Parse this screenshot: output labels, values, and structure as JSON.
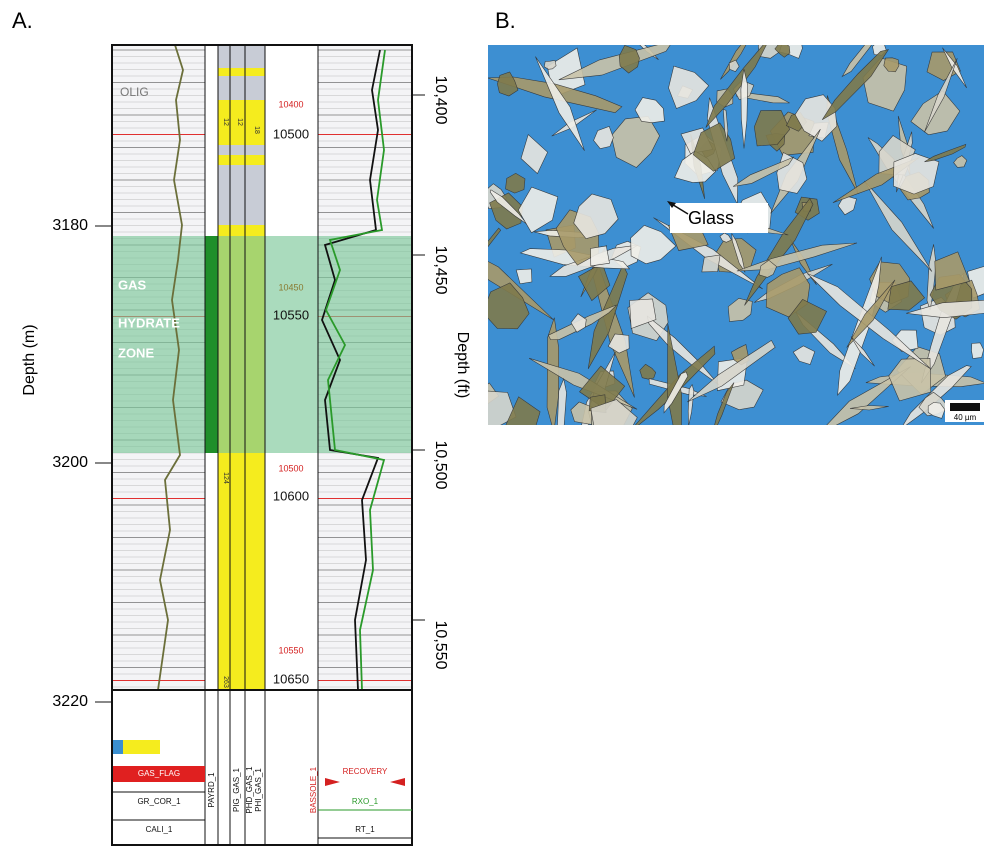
{
  "panel_a": {
    "label": "A.",
    "depth_m_axis": {
      "title": "Depth (m)",
      "ticks": [
        "3180",
        "3200",
        "3220"
      ]
    },
    "depth_ft_axis": {
      "title": "Depth (ft)",
      "ticks": [
        "10,400",
        "10,450",
        "10,500",
        "10,550"
      ]
    },
    "depth_track": {
      "black_labels": [
        "10500",
        "10550",
        "10600",
        "10650"
      ],
      "red_labels": [
        "10400",
        "10450",
        "10500",
        "10550"
      ]
    },
    "zone_labels": [
      "GAS",
      "HYDRATE",
      "ZONE"
    ],
    "formation": "OLIG",
    "track_numbers": [
      "12",
      "12",
      "18",
      "124",
      "263"
    ],
    "footer": {
      "gas_flag": "GAS_FLAG",
      "gr": "GR_COR_1",
      "cali": "CALI_1",
      "pay": "PAYRD_1",
      "tracks": [
        "PIG_GAS_1",
        "PHD_GAS_1",
        "PHI_GAS_1"
      ],
      "recovery": "RECOVERY",
      "rxo": "RXO_1",
      "rt": "RT_1",
      "bas": "BASSOLE_1"
    }
  },
  "panel_b": {
    "label": "B.",
    "annotation": "Glass",
    "scale": "40 µm"
  }
}
